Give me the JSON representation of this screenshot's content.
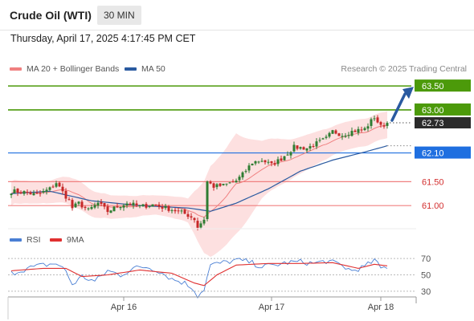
{
  "header": {
    "title": "Crude Oil (WTI)",
    "interval": "30 MIN",
    "datetime": "Thursday, April 17, 2025 4:17:45 PM CET"
  },
  "legend": {
    "ma20_label": "MA 20 + Bollinger Bands",
    "ma50_label": "MA 50",
    "credit": "Research © 2025 Trading Central",
    "rsi_label": "RSI",
    "rsi_ma_label": "9MA"
  },
  "colors": {
    "ma20": "#f08080",
    "ma50": "#2a5aa0",
    "bollinger_fill": "#fde0e0",
    "resistance": "#4c9a0a",
    "support_blue": "#1f6fe0",
    "support_red": "#f08080",
    "candle_up": "#2e7d32",
    "candle_down": "#c62828",
    "rsi": "#4a7fd4",
    "rsi_ma": "#e03030",
    "arrow": "#2a5aa0"
  },
  "chart_data": [
    {
      "type": "candlestick",
      "title": "",
      "ylim": [
        60.55,
        63.72
      ],
      "x_ticks": [
        "Apr 16",
        "Apr 17",
        "Apr 18"
      ],
      "x_tick_index": [
        35,
        81,
        115
      ],
      "n_bars": 118,
      "last_price": "62.73",
      "levels": [
        {
          "label": "63.50",
          "value": 63.5,
          "kind": "resistance"
        },
        {
          "label": "63.00",
          "value": 63.0,
          "kind": "resistance"
        },
        {
          "label": "62.10",
          "value": 62.1,
          "kind": "support-blue"
        },
        {
          "label": "61.50",
          "value": 61.5,
          "kind": "support-red"
        },
        {
          "label": "61.00",
          "value": 61.0,
          "kind": "support-red"
        }
      ],
      "close_anchors": [
        [
          0,
          61.3
        ],
        [
          4,
          61.28
        ],
        [
          8,
          61.22
        ],
        [
          12,
          61.35
        ],
        [
          14,
          61.48
        ],
        [
          16,
          61.28
        ],
        [
          18,
          61.1
        ],
        [
          19,
          60.95
        ],
        [
          21,
          61.05
        ],
        [
          24,
          60.9
        ],
        [
          27,
          61.05
        ],
        [
          30,
          60.88
        ],
        [
          33,
          60.98
        ],
        [
          36,
          61.05
        ],
        [
          40,
          60.98
        ],
        [
          44,
          61.02
        ],
        [
          48,
          60.95
        ],
        [
          52,
          60.88
        ],
        [
          55,
          60.8
        ],
        [
          57,
          60.72
        ],
        [
          58,
          60.55
        ],
        [
          60,
          60.72
        ],
        [
          61,
          61.5
        ],
        [
          63,
          61.4
        ],
        [
          66,
          61.42
        ],
        [
          70,
          61.52
        ],
        [
          72,
          61.65
        ],
        [
          75,
          61.9
        ],
        [
          78,
          61.95
        ],
        [
          81,
          61.85
        ],
        [
          84,
          61.98
        ],
        [
          88,
          62.22
        ],
        [
          92,
          62.2
        ],
        [
          95,
          62.3
        ],
        [
          98,
          62.4
        ],
        [
          100,
          62.55
        ],
        [
          103,
          62.48
        ],
        [
          106,
          62.55
        ],
        [
          110,
          62.6
        ],
        [
          113,
          62.85
        ],
        [
          115,
          62.65
        ],
        [
          117,
          62.73
        ]
      ],
      "bb_width_anchors": [
        [
          0,
          0.25
        ],
        [
          10,
          0.22
        ],
        [
          20,
          0.3
        ],
        [
          30,
          0.25
        ],
        [
          45,
          0.2
        ],
        [
          55,
          0.25
        ],
        [
          62,
          0.95
        ],
        [
          70,
          1.05
        ],
        [
          78,
          0.6
        ],
        [
          88,
          0.4
        ],
        [
          100,
          0.3
        ],
        [
          117,
          0.28
        ]
      ],
      "ma50_anchors": [
        [
          0,
          61.25
        ],
        [
          12,
          61.3
        ],
        [
          25,
          61.1
        ],
        [
          40,
          61.0
        ],
        [
          55,
          60.95
        ],
        [
          62,
          60.88
        ],
        [
          70,
          61.05
        ],
        [
          80,
          61.35
        ],
        [
          90,
          61.72
        ],
        [
          100,
          61.95
        ],
        [
          110,
          62.12
        ],
        [
          117,
          62.25
        ]
      ],
      "annotation": "arrow-up-towards-63.50"
    },
    {
      "type": "line",
      "title": "",
      "ylim": [
        25,
        80
      ],
      "y_ticks": [
        30,
        50,
        70
      ],
      "series": [
        {
          "name": "RSI",
          "anchors": [
            [
              0,
              52
            ],
            [
              5,
              58
            ],
            [
              10,
              62
            ],
            [
              14,
              64
            ],
            [
              17,
              55
            ],
            [
              19,
              38
            ],
            [
              22,
              48
            ],
            [
              26,
              42
            ],
            [
              30,
              55
            ],
            [
              34,
              50
            ],
            [
              38,
              58
            ],
            [
              42,
              60
            ],
            [
              46,
              55
            ],
            [
              50,
              45
            ],
            [
              54,
              40
            ],
            [
              57,
              32
            ],
            [
              58,
              24
            ],
            [
              60,
              33
            ],
            [
              62,
              62
            ],
            [
              66,
              65
            ],
            [
              70,
              68
            ],
            [
              74,
              66
            ],
            [
              78,
              60
            ],
            [
              82,
              62
            ],
            [
              86,
              65
            ],
            [
              90,
              66
            ],
            [
              94,
              64
            ],
            [
              98,
              67
            ],
            [
              102,
              63
            ],
            [
              106,
              55
            ],
            [
              110,
              60
            ],
            [
              113,
              68
            ],
            [
              115,
              58
            ],
            [
              117,
              60
            ]
          ]
        },
        {
          "name": "9MA",
          "anchors": [
            [
              0,
              55
            ],
            [
              10,
              58
            ],
            [
              17,
              58
            ],
            [
              22,
              48
            ],
            [
              30,
              50
            ],
            [
              40,
              56
            ],
            [
              50,
              52
            ],
            [
              57,
              40
            ],
            [
              60,
              37
            ],
            [
              64,
              50
            ],
            [
              70,
              62
            ],
            [
              80,
              64
            ],
            [
              90,
              64
            ],
            [
              100,
              65
            ],
            [
              108,
              58
            ],
            [
              113,
              63
            ],
            [
              117,
              61
            ]
          ]
        }
      ]
    }
  ]
}
